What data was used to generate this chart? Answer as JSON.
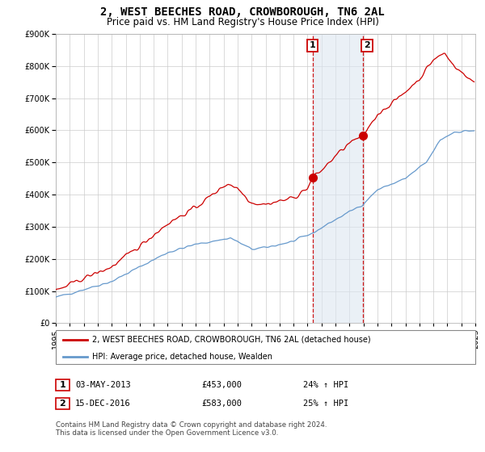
{
  "title": "2, WEST BEECHES ROAD, CROWBOROUGH, TN6 2AL",
  "subtitle": "Price paid vs. HM Land Registry's House Price Index (HPI)",
  "title_fontsize": 10,
  "subtitle_fontsize": 8.5,
  "ylim": [
    0,
    900000
  ],
  "yticks": [
    0,
    100000,
    200000,
    300000,
    400000,
    500000,
    600000,
    700000,
    800000,
    900000
  ],
  "background_color": "#ffffff",
  "plot_background": "#ffffff",
  "grid_color": "#cccccc",
  "purchase1": {
    "date_x": 2013.37,
    "price": 453000,
    "label": "1"
  },
  "purchase2": {
    "date_x": 2016.96,
    "price": 583000,
    "label": "2"
  },
  "shade_start": 2013.37,
  "shade_end": 2016.96,
  "legend_line1": "2, WEST BEECHES ROAD, CROWBOROUGH, TN6 2AL (detached house)",
  "legend_line2": "HPI: Average price, detached house, Wealden",
  "table_rows": [
    {
      "num": "1",
      "date": "03-MAY-2013",
      "price": "£453,000",
      "hpi": "24% ↑ HPI"
    },
    {
      "num": "2",
      "date": "15-DEC-2016",
      "price": "£583,000",
      "hpi": "25% ↑ HPI"
    }
  ],
  "footnote": "Contains HM Land Registry data © Crown copyright and database right 2024.\nThis data is licensed under the Open Government Licence v3.0.",
  "red_color": "#cc0000",
  "blue_color": "#6699cc",
  "shade_color": "#dce6f1",
  "xmin": 1995,
  "xmax": 2025
}
